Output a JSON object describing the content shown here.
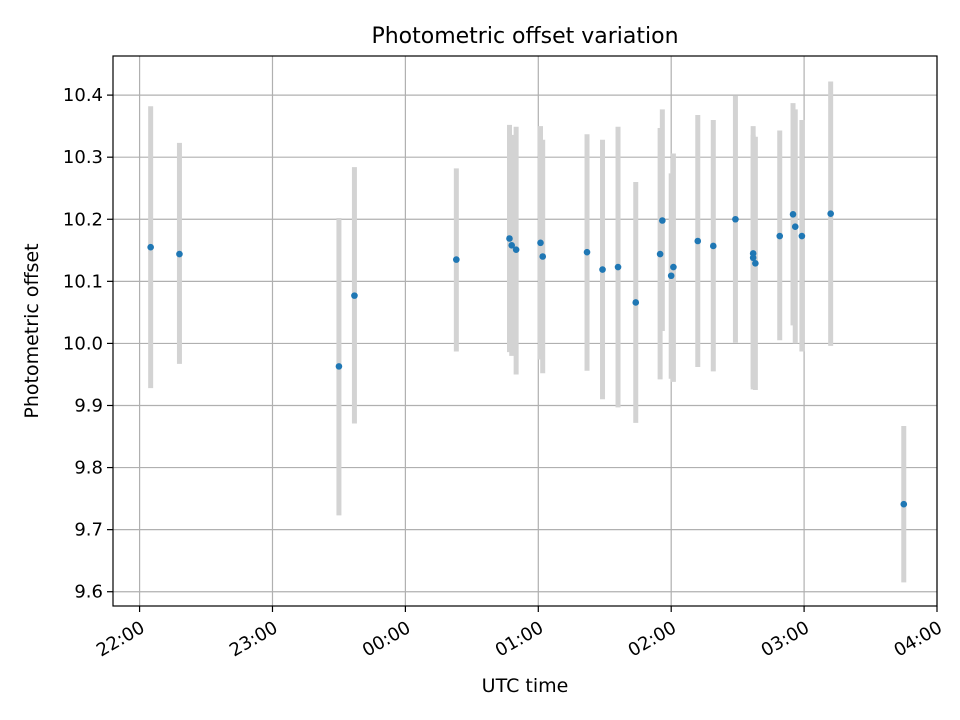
{
  "chart_data": {
    "type": "scatter",
    "title": "Photometric offset variation",
    "xlabel": "UTC time",
    "ylabel": "Photometric offset",
    "xlim_minutes_since_2200": [
      -12,
      360
    ],
    "ylim": [
      9.577,
      10.463
    ],
    "x_tick_labels": [
      "22:00",
      "23:00",
      "00:00",
      "01:00",
      "02:00",
      "03:00",
      "04:00"
    ],
    "y_ticks": [
      9.6,
      9.7,
      9.8,
      9.9,
      10.0,
      10.1,
      10.2,
      10.3,
      10.4
    ],
    "y_tick_labels": [
      "9.6",
      "9.7",
      "9.8",
      "9.9",
      "10.0",
      "10.1",
      "10.2",
      "10.3",
      "10.4"
    ],
    "grid": true,
    "colors": {
      "point": "#1f77b4",
      "errorbar": "#d3d3d3",
      "grid": "#b0b0b0"
    },
    "points": [
      {
        "time": "22:05",
        "y": 10.155,
        "yerr_low": 9.928,
        "yerr_high": 10.382
      },
      {
        "time": "22:18",
        "y": 10.144,
        "yerr_low": 9.967,
        "yerr_high": 10.323
      },
      {
        "time": "23:30",
        "y": 9.963,
        "yerr_low": 9.723,
        "yerr_high": 10.202
      },
      {
        "time": "23:37",
        "y": 10.077,
        "yerr_low": 9.871,
        "yerr_high": 10.284
      },
      {
        "time": "00:23",
        "y": 10.135,
        "yerr_low": 9.987,
        "yerr_high": 10.282
      },
      {
        "time": "00:47",
        "y": 10.169,
        "yerr_low": 9.986,
        "yerr_high": 10.352
      },
      {
        "time": "00:48",
        "y": 10.158,
        "yerr_low": 9.98,
        "yerr_high": 10.336
      },
      {
        "time": "00:50",
        "y": 10.151,
        "yerr_low": 9.95,
        "yerr_high": 10.349
      },
      {
        "time": "01:01",
        "y": 10.162,
        "yerr_low": 9.974,
        "yerr_high": 10.35
      },
      {
        "time": "01:02",
        "y": 10.14,
        "yerr_low": 9.952,
        "yerr_high": 10.328
      },
      {
        "time": "01:22",
        "y": 10.147,
        "yerr_low": 9.956,
        "yerr_high": 10.337
      },
      {
        "time": "01:29",
        "y": 10.119,
        "yerr_low": 9.91,
        "yerr_high": 10.328
      },
      {
        "time": "01:36",
        "y": 10.123,
        "yerr_low": 9.897,
        "yerr_high": 10.349
      },
      {
        "time": "01:44",
        "y": 10.066,
        "yerr_low": 9.872,
        "yerr_high": 10.26
      },
      {
        "time": "01:55",
        "y": 10.144,
        "yerr_low": 9.942,
        "yerr_high": 10.347
      },
      {
        "time": "01:56",
        "y": 10.198,
        "yerr_low": 10.02,
        "yerr_high": 10.377
      },
      {
        "time": "02:00",
        "y": 10.109,
        "yerr_low": 9.943,
        "yerr_high": 10.274
      },
      {
        "time": "02:01",
        "y": 10.123,
        "yerr_low": 9.938,
        "yerr_high": 10.306
      },
      {
        "time": "02:12",
        "y": 10.165,
        "yerr_low": 9.962,
        "yerr_high": 10.368
      },
      {
        "time": "02:19",
        "y": 10.157,
        "yerr_low": 9.955,
        "yerr_high": 10.36
      },
      {
        "time": "02:29",
        "y": 10.2,
        "yerr_low": 10.001,
        "yerr_high": 10.399
      },
      {
        "time": "02:37",
        "y": 10.145,
        "yerr_low": 9.93,
        "yerr_high": 10.35
      },
      {
        "time": "02:37",
        "y": 10.138,
        "yerr_low": 9.926,
        "yerr_high": 10.336
      },
      {
        "time": "02:38",
        "y": 10.129,
        "yerr_low": 9.925,
        "yerr_high": 10.333
      },
      {
        "time": "02:49",
        "y": 10.173,
        "yerr_low": 10.005,
        "yerr_high": 10.343
      },
      {
        "time": "02:55",
        "y": 10.208,
        "yerr_low": 10.029,
        "yerr_high": 10.387
      },
      {
        "time": "02:56",
        "y": 10.188,
        "yerr_low": 10.0,
        "yerr_high": 10.377
      },
      {
        "time": "02:59",
        "y": 10.173,
        "yerr_low": 9.987,
        "yerr_high": 10.36
      },
      {
        "time": "03:12",
        "y": 10.209,
        "yerr_low": 9.996,
        "yerr_high": 10.422
      },
      {
        "time": "03:45",
        "y": 9.741,
        "yerr_low": 9.615,
        "yerr_high": 9.867
      }
    ]
  }
}
